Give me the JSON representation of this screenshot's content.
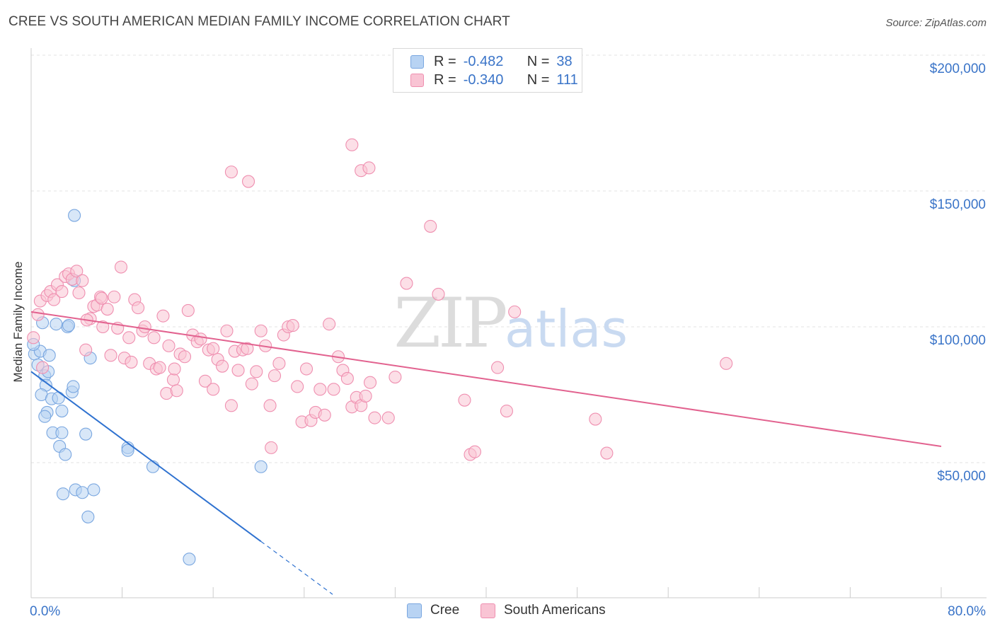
{
  "header": {
    "title": "CREE VS SOUTH AMERICAN MEDIAN FAMILY INCOME CORRELATION CHART",
    "source": "Source: ZipAtlas.com"
  },
  "watermark": {
    "zip": "ZIP",
    "atlas": "atlas"
  },
  "legend": {
    "rows": [
      {
        "r_label": "R =",
        "r_value": "-0.482",
        "n_label": "N =",
        "n_value": "38",
        "color": "#a9c8f0",
        "stroke": "#7aa7e0"
      },
      {
        "r_label": "R =",
        "r_value": "-0.340",
        "n_label": "N =",
        "n_value": "111",
        "color": "#f6b9cc",
        "stroke": "#ef8fb0"
      }
    ]
  },
  "bottom_legend": {
    "items": [
      {
        "label": "Cree",
        "color": "#b8d3f3",
        "stroke": "#7aa7e0"
      },
      {
        "label": "South Americans",
        "color": "#f9c4d4",
        "stroke": "#ef8fb0"
      }
    ]
  },
  "chart_data": {
    "type": "scatter",
    "title": "CREE VS SOUTH AMERICAN MEDIAN FAMILY INCOME CORRELATION CHART",
    "xlabel": "",
    "ylabel": "Median Family Income",
    "xlim": [
      0,
      80
    ],
    "ylim": [
      0,
      205000
    ],
    "x_tick_labels": [
      "0.0%",
      "80.0%"
    ],
    "y_ticks": [
      50000,
      100000,
      150000,
      200000
    ],
    "y_tick_labels": [
      "$50,000",
      "$100,000",
      "$150,000",
      "$200,000"
    ],
    "grid": true,
    "legend_position": "top-center",
    "series": [
      {
        "name": "Cree",
        "color": "#7aa7e0",
        "fill": "#b8d3f3",
        "trend": {
          "x0": 0,
          "y0": 83500,
          "x1": 20.2,
          "y1": 21000,
          "dash_to_x": 26.5
        },
        "points": [
          [
            0.3,
            90000
          ],
          [
            0.6,
            86000
          ],
          [
            0.8,
            91000
          ],
          [
            1.0,
            101500
          ],
          [
            1.2,
            82000
          ],
          [
            1.3,
            78500
          ],
          [
            1.5,
            83500
          ],
          [
            1.6,
            89500
          ],
          [
            0.9,
            75000
          ],
          [
            1.8,
            73500
          ],
          [
            2.2,
            101000
          ],
          [
            2.4,
            73800
          ],
          [
            1.4,
            68500
          ],
          [
            1.2,
            67000
          ],
          [
            2.7,
            69000
          ],
          [
            3.2,
            100000
          ],
          [
            3.3,
            100500
          ],
          [
            3.6,
            76000
          ],
          [
            3.7,
            78000
          ],
          [
            1.9,
            61000
          ],
          [
            2.7,
            61000
          ],
          [
            2.5,
            56000
          ],
          [
            3.0,
            53000
          ],
          [
            4.8,
            60500
          ],
          [
            5.2,
            88500
          ],
          [
            3.8,
            117000
          ],
          [
            3.8,
            141000
          ],
          [
            8.5,
            55500
          ],
          [
            8.5,
            54500
          ],
          [
            10.7,
            48500
          ],
          [
            3.9,
            40000
          ],
          [
            4.5,
            39000
          ],
          [
            2.8,
            38500
          ],
          [
            5.5,
            40000
          ],
          [
            5.0,
            30000
          ],
          [
            20.2,
            48500
          ],
          [
            13.9,
            14500
          ],
          [
            0.2,
            93500
          ]
        ]
      },
      {
        "name": "South Americans",
        "color": "#ef8fb0",
        "fill": "#f9c4d4",
        "trend": {
          "x0": 0,
          "y0": 105500,
          "x1": 80,
          "y1": 56000
        },
        "points": [
          [
            0.2,
            96000
          ],
          [
            0.6,
            104500
          ],
          [
            0.8,
            109500
          ],
          [
            1.0,
            85000
          ],
          [
            1.4,
            111500
          ],
          [
            1.7,
            113000
          ],
          [
            2.0,
            110000
          ],
          [
            2.3,
            115500
          ],
          [
            2.7,
            113000
          ],
          [
            3.0,
            118500
          ],
          [
            3.3,
            119500
          ],
          [
            3.6,
            117500
          ],
          [
            4.0,
            120500
          ],
          [
            4.2,
            112500
          ],
          [
            4.5,
            117000
          ],
          [
            4.8,
            91500
          ],
          [
            5.2,
            103000
          ],
          [
            5.5,
            107500
          ],
          [
            5.8,
            108000
          ],
          [
            6.1,
            111000
          ],
          [
            6.3,
            100000
          ],
          [
            6.7,
            106500
          ],
          [
            7.0,
            89500
          ],
          [
            7.3,
            111000
          ],
          [
            7.6,
            99500
          ],
          [
            7.9,
            122000
          ],
          [
            8.2,
            88500
          ],
          [
            8.6,
            96000
          ],
          [
            8.8,
            87000
          ],
          [
            9.1,
            110000
          ],
          [
            9.4,
            107000
          ],
          [
            9.8,
            98500
          ],
          [
            10.0,
            100000
          ],
          [
            10.4,
            86500
          ],
          [
            10.8,
            96000
          ],
          [
            11.0,
            84500
          ],
          [
            11.3,
            85000
          ],
          [
            11.6,
            104000
          ],
          [
            11.9,
            75500
          ],
          [
            12.1,
            93000
          ],
          [
            12.5,
            80500
          ],
          [
            12.8,
            76500
          ],
          [
            13.1,
            90000
          ],
          [
            13.5,
            89000
          ],
          [
            13.8,
            106000
          ],
          [
            14.2,
            97000
          ],
          [
            14.6,
            94500
          ],
          [
            14.9,
            95500
          ],
          [
            15.3,
            80000
          ],
          [
            15.6,
            91500
          ],
          [
            16.0,
            77000
          ],
          [
            16.4,
            88000
          ],
          [
            16.8,
            85500
          ],
          [
            17.2,
            98500
          ],
          [
            17.6,
            71000
          ],
          [
            17.9,
            91000
          ],
          [
            18.2,
            84000
          ],
          [
            18.6,
            91500
          ],
          [
            19.0,
            92000
          ],
          [
            19.4,
            79000
          ],
          [
            19.8,
            83500
          ],
          [
            20.2,
            98500
          ],
          [
            20.6,
            93000
          ],
          [
            21.0,
            71000
          ],
          [
            21.4,
            82000
          ],
          [
            21.8,
            86500
          ],
          [
            22.2,
            97000
          ],
          [
            22.6,
            100000
          ],
          [
            23.0,
            100500
          ],
          [
            23.4,
            78000
          ],
          [
            23.8,
            65000
          ],
          [
            24.2,
            84500
          ],
          [
            24.6,
            65500
          ],
          [
            25.0,
            68500
          ],
          [
            25.4,
            77000
          ],
          [
            25.8,
            67500
          ],
          [
            26.2,
            101000
          ],
          [
            26.6,
            77000
          ],
          [
            27.0,
            89000
          ],
          [
            27.4,
            84000
          ],
          [
            27.8,
            81000
          ],
          [
            28.2,
            70500
          ],
          [
            28.6,
            74000
          ],
          [
            29.0,
            71000
          ],
          [
            29.4,
            74500
          ],
          [
            29.8,
            79500
          ],
          [
            30.2,
            66500
          ],
          [
            31.4,
            66500
          ],
          [
            32.0,
            81500
          ],
          [
            33.0,
            116000
          ],
          [
            35.1,
            137000
          ],
          [
            35.8,
            112000
          ],
          [
            38.1,
            73000
          ],
          [
            38.6,
            53000
          ],
          [
            39.0,
            54000
          ],
          [
            41.0,
            85000
          ],
          [
            41.8,
            69000
          ],
          [
            42.5,
            105500
          ],
          [
            49.6,
            66000
          ],
          [
            50.6,
            53500
          ],
          [
            61.1,
            86500
          ],
          [
            17.6,
            157000
          ],
          [
            19.1,
            153500
          ],
          [
            28.2,
            167000
          ],
          [
            29.0,
            157500
          ],
          [
            29.7,
            158500
          ],
          [
            21.1,
            55500
          ],
          [
            6.2,
            110500
          ],
          [
            12.6,
            84500
          ],
          [
            16.0,
            92000
          ],
          [
            4.9,
            102500
          ]
        ]
      }
    ]
  }
}
